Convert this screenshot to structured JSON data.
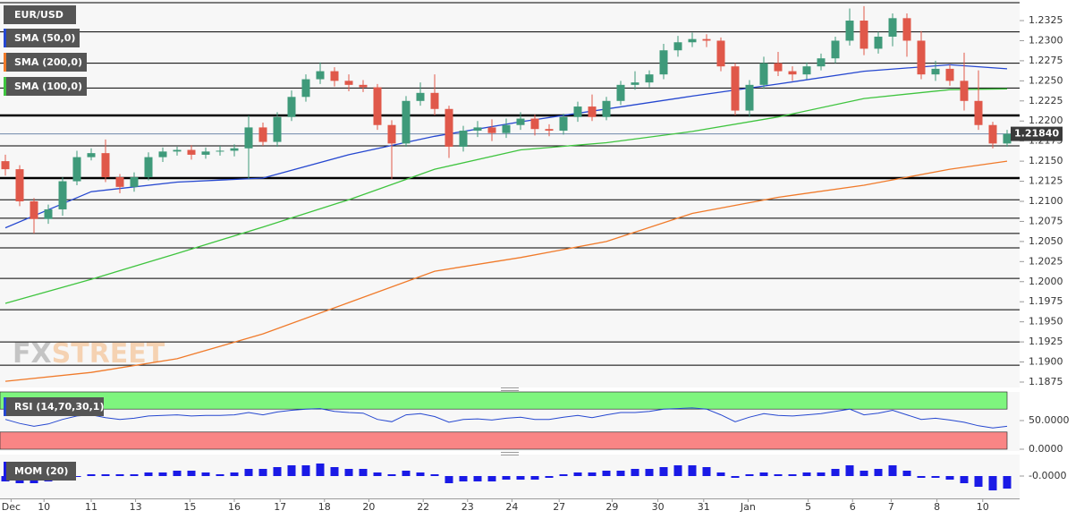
{
  "chart_data": {
    "type": "candlestick",
    "title": "EUR/USD",
    "up_color": "#3f9a7a",
    "down_color": "#e0584a",
    "open": [
      1.215,
      1.214,
      1.21,
      1.2078,
      1.209,
      1.2125,
      1.2155,
      1.216,
      1.213,
      1.2118,
      1.213,
      1.2155,
      1.2162,
      1.2164,
      1.2158,
      1.2162,
      1.2163,
      1.2166,
      1.2192,
      1.2174,
      1.2205,
      1.223,
      1.2252,
      1.2262,
      1.225,
      1.2245,
      1.2242,
      1.2195,
      1.2172,
      1.2225,
      1.2235,
      1.2215,
      1.2168,
      1.2188,
      1.2192,
      1.2185,
      1.2195,
      1.2203,
      1.219,
      1.2188,
      1.2205,
      1.2218,
      1.2205,
      1.2225,
      1.2245,
      1.2248,
      1.2258,
      1.2288,
      1.2298,
      1.2302,
      1.23,
      1.2268,
      1.2213,
      1.2245,
      1.2272,
      1.2262,
      1.2258,
      1.2268,
      1.2278,
      1.23,
      1.2325,
      1.229,
      1.2305,
      1.2328,
      1.23,
      1.2258,
      1.2265,
      1.225,
      1.2225,
      1.2195,
      1.2172
    ],
    "high": [
      1.2158,
      1.2145,
      1.2104,
      1.2096,
      1.213,
      1.2163,
      1.2166,
      1.2177,
      1.2134,
      1.2136,
      1.2161,
      1.2167,
      1.2168,
      1.217,
      1.2167,
      1.2169,
      1.2171,
      1.2207,
      1.2198,
      1.2211,
      1.2238,
      1.2258,
      1.2273,
      1.2267,
      1.2258,
      1.2251,
      1.2246,
      1.2201,
      1.2231,
      1.2248,
      1.2258,
      1.2219,
      1.2194,
      1.22,
      1.2202,
      1.2203,
      1.2211,
      1.2208,
      1.2196,
      1.2209,
      1.2224,
      1.2233,
      1.223,
      1.225,
      1.2262,
      1.2263,
      1.2296,
      1.2306,
      1.231,
      1.2308,
      1.2304,
      1.2272,
      1.2251,
      1.228,
      1.2286,
      1.2268,
      1.2273,
      1.2284,
      1.2305,
      1.234,
      1.2343,
      1.2311,
      1.2334,
      1.2334,
      1.2312,
      1.2275,
      1.227,
      1.2285,
      1.2263,
      1.2199,
      1.2189
    ],
    "low": [
      1.2132,
      1.2094,
      1.206,
      1.2072,
      1.2082,
      1.212,
      1.2151,
      1.2124,
      1.211,
      1.2112,
      1.2126,
      1.2149,
      1.2157,
      1.2152,
      1.2153,
      1.2157,
      1.2156,
      1.2128,
      1.2169,
      1.2168,
      1.22,
      1.2224,
      1.2246,
      1.2243,
      1.2237,
      1.2236,
      1.2189,
      1.2128,
      1.2168,
      1.2219,
      1.2207,
      1.2154,
      1.2162,
      1.218,
      1.2175,
      1.2179,
      1.2189,
      1.2182,
      1.2181,
      1.2183,
      1.2199,
      1.22,
      1.2201,
      1.222,
      1.2239,
      1.2242,
      1.2252,
      1.228,
      1.2292,
      1.2292,
      1.2262,
      1.2207,
      1.2205,
      1.224,
      1.2256,
      1.225,
      1.2252,
      1.2263,
      1.2272,
      1.2294,
      1.2282,
      1.2284,
      1.2293,
      1.228,
      1.2252,
      1.225,
      1.2244,
      1.2213,
      1.2189,
      1.2166,
      1.2168
    ],
    "close": [
      1.214,
      1.21,
      1.2078,
      1.209,
      1.2125,
      1.2155,
      1.216,
      1.213,
      1.2118,
      1.213,
      1.2155,
      1.2162,
      1.2164,
      1.2158,
      1.2162,
      1.2163,
      1.2166,
      1.2192,
      1.2174,
      1.2205,
      1.223,
      1.2252,
      1.2262,
      1.225,
      1.2245,
      1.2242,
      1.2195,
      1.2172,
      1.2225,
      1.2235,
      1.2215,
      1.2168,
      1.2188,
      1.2192,
      1.2185,
      1.2195,
      1.2203,
      1.219,
      1.2188,
      1.2205,
      1.2218,
      1.2205,
      1.2225,
      1.2245,
      1.2248,
      1.2258,
      1.2288,
      1.2298,
      1.2302,
      1.23,
      1.2268,
      1.2213,
      1.2245,
      1.2272,
      1.2262,
      1.2258,
      1.2268,
      1.2278,
      1.23,
      1.2325,
      1.229,
      1.2305,
      1.2328,
      1.23,
      1.2258,
      1.2265,
      1.225,
      1.2225,
      1.2195,
      1.2172,
      1.2184
    ],
    "xticks": [
      {
        "value": 0.4,
        "label": "Dec"
      },
      {
        "value": 2.7,
        "label": "10"
      },
      {
        "value": 6,
        "label": "11"
      },
      {
        "value": 9.1,
        "label": "13"
      },
      {
        "value": 12.9,
        "label": "15"
      },
      {
        "value": 16,
        "label": "16"
      },
      {
        "value": 19.2,
        "label": "17"
      },
      {
        "value": 22.3,
        "label": "18"
      },
      {
        "value": 25.4,
        "label": "20"
      },
      {
        "value": 29.2,
        "label": "22"
      },
      {
        "value": 32.3,
        "label": "23"
      },
      {
        "value": 35.4,
        "label": "24"
      },
      {
        "value": 38.7,
        "label": "27"
      },
      {
        "value": 42.4,
        "label": "29"
      },
      {
        "value": 45.6,
        "label": "30"
      },
      {
        "value": 48.8,
        "label": "31"
      },
      {
        "value": 51.9,
        "label": "Jan"
      },
      {
        "value": 56.1,
        "label": "5"
      },
      {
        "value": 59.2,
        "label": "6"
      },
      {
        "value": 61.9,
        "label": "7"
      },
      {
        "value": 65.1,
        "label": "8"
      },
      {
        "value": 68.3,
        "label": "10"
      }
    ],
    "xlim": [
      -0.375,
      70.875
    ],
    "ylim": [
      1.18694,
      1.23473
    ],
    "yticks": [
      1.2325,
      {
        "value": 1.23,
        "label": "1.2300"
      },
      1.2275,
      {
        "value": 1.225,
        "label": "1.2250"
      },
      1.2225,
      {
        "value": 1.22,
        "label": "1.2200"
      },
      1.2175,
      {
        "value": 1.215,
        "label": "1.2150"
      },
      1.2125,
      {
        "value": 1.21,
        "label": "1.2100"
      },
      1.2075,
      {
        "value": 1.205,
        "label": "1.2050"
      },
      1.2025,
      {
        "value": 1.2,
        "label": "1.2000"
      },
      1.1975,
      {
        "value": 1.195,
        "label": "1.1950"
      },
      1.1925,
      {
        "value": 1.19,
        "label": "1.1900"
      },
      1.1875
    ],
    "last": {
      "value": 1.2184,
      "label": "1.21840"
    },
    "levels": [
      {
        "value": 1.2311,
        "bold": false
      },
      {
        "value": 1.2272,
        "bold": false
      },
      {
        "value": 1.2241,
        "bold": false
      },
      {
        "value": 1.2207,
        "bold": true
      },
      {
        "value": 1.2169,
        "bold": false
      },
      {
        "value": 1.2129,
        "bold": true
      },
      {
        "value": 1.2102,
        "bold": false
      },
      {
        "value": 1.2079,
        "bold": false
      },
      {
        "value": 1.206,
        "bold": false
      },
      {
        "value": 1.2042,
        "bold": false
      },
      {
        "value": 1.2004,
        "bold": false
      },
      {
        "value": 1.1965,
        "bold": false
      },
      {
        "value": 1.1925,
        "bold": false
      },
      {
        "value": 1.1896,
        "bold": false
      }
    ],
    "overlays": [
      {
        "name": "SMA (50,0)",
        "color": "#2547d0",
        "x": [
          0,
          6,
          12,
          18,
          24,
          30,
          36,
          42,
          48,
          54,
          60,
          66,
          70
        ],
        "values": [
          1.2067,
          1.2112,
          1.2124,
          1.2129,
          1.2158,
          1.2181,
          1.2199,
          1.2215,
          1.2231,
          1.2246,
          1.2262,
          1.227,
          1.2265
        ]
      },
      {
        "name": "SMA (200,0)",
        "color": "#f07a2a",
        "x": [
          0,
          6,
          12,
          18,
          24,
          30,
          36,
          42,
          48,
          54,
          60,
          66,
          70
        ],
        "values": [
          1.1876,
          1.1887,
          1.1904,
          1.1935,
          1.1974,
          1.2013,
          1.203,
          1.205,
          1.2085,
          1.2105,
          1.212,
          1.214,
          1.215
        ]
      },
      {
        "name": "SMA (100,0)",
        "color": "#3fc43f",
        "x": [
          0,
          6,
          12,
          18,
          24,
          30,
          36,
          42,
          48,
          54,
          60,
          66,
          70
        ],
        "values": [
          1.1973,
          1.2003,
          1.2035,
          1.2068,
          1.2102,
          1.214,
          1.2164,
          1.2173,
          1.2187,
          1.2205,
          1.2228,
          1.2239,
          1.224
        ]
      }
    ],
    "rsi": {
      "name": "RSI (14,70,30,1)",
      "color": "#2547d0",
      "overbought": 70,
      "oversold": 30,
      "ylim": [
        0,
        100
      ],
      "yticks": [
        {
          "value": 50,
          "label": "50.0000"
        },
        {
          "value": 0,
          "label": "0.0000"
        }
      ],
      "values": [
        52,
        45,
        40,
        44,
        52,
        58,
        60,
        55,
        52,
        54,
        58,
        59,
        60,
        58,
        59,
        59,
        60,
        64,
        60,
        65,
        68,
        70,
        71,
        66,
        64,
        63,
        52,
        48,
        60,
        62,
        57,
        47,
        52,
        53,
        51,
        54,
        56,
        52,
        52,
        56,
        59,
        55,
        60,
        64,
        64,
        66,
        70,
        71,
        72,
        70,
        60,
        48,
        56,
        62,
        59,
        58,
        60,
        62,
        66,
        70,
        60,
        63,
        68,
        60,
        52,
        54,
        51,
        47,
        41,
        37,
        40
      ]
    },
    "mom": {
      "name": "MOM (20)",
      "color": "#1a1ae6",
      "ylim": [
        -0.0115,
        0.01
      ],
      "yticks": [
        {
          "value": 0,
          "label": "-0.0000"
        }
      ],
      "values": [
        -0.003,
        -0.004,
        -0.004,
        -0.003,
        -0.002,
        0.0,
        0.001,
        0.001,
        0.001,
        0.001,
        0.002,
        0.002,
        0.003,
        0.003,
        0.002,
        0.001,
        0.002,
        0.004,
        0.004,
        0.005,
        0.006,
        0.006,
        0.007,
        0.005,
        0.004,
        0.004,
        0.002,
        0.001,
        0.003,
        0.002,
        0.001,
        -0.004,
        -0.003,
        -0.003,
        -0.003,
        -0.002,
        -0.002,
        -0.002,
        -0.001,
        0.001,
        0.002,
        0.002,
        0.003,
        0.003,
        0.004,
        0.004,
        0.005,
        0.006,
        0.006,
        0.005,
        0.002,
        -0.001,
        0.001,
        0.002,
        0.001,
        0.001,
        0.002,
        0.002,
        0.004,
        0.006,
        0.003,
        0.004,
        0.006,
        0.003,
        -0.001,
        -0.001,
        -0.002,
        -0.004,
        -0.006,
        -0.008,
        -0.007
      ]
    }
  },
  "watermark": [
    "FX",
    "STREET"
  ]
}
